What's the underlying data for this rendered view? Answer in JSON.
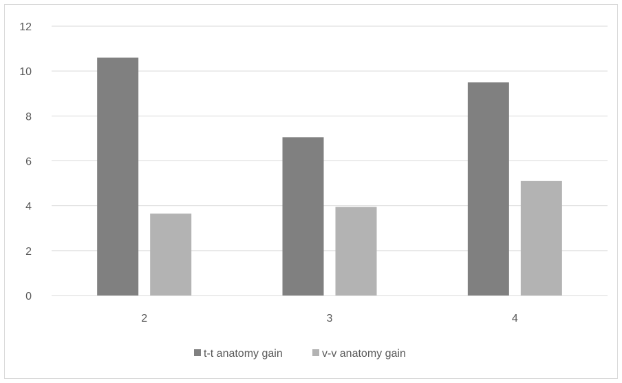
{
  "chart_data": {
    "type": "bar",
    "categories": [
      "2",
      "3",
      "4"
    ],
    "series": [
      {
        "name": "t-t anatomy gain",
        "values": [
          10.6,
          7.05,
          9.5
        ],
        "color": "#808080"
      },
      {
        "name": "v-v anatomy gain",
        "values": [
          3.65,
          3.95,
          5.1
        ],
        "color": "#b3b3b3"
      }
    ],
    "ylim": [
      0,
      12
    ],
    "yticks": [
      "0",
      "2",
      "4",
      "6",
      "8",
      "10",
      "12"
    ],
    "grid": true,
    "legend_position": "bottom",
    "gridline_color": "#d9d9d9",
    "axis_color": "#d9d9d9"
  }
}
